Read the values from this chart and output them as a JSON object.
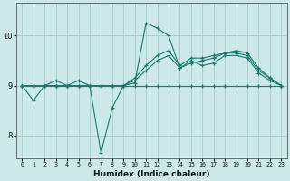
{
  "xlabel": "Humidex (Indice chaleur)",
  "bg_color": "#cce8e8",
  "grid_color": "#aacfcf",
  "line_color": "#1a7a6e",
  "xlim": [
    -0.5,
    23.5
  ],
  "ylim": [
    7.55,
    10.65
  ],
  "yticks": [
    8,
    9,
    10
  ],
  "xtick_labels": [
    "0",
    "1",
    "2",
    "3",
    "4",
    "5",
    "6",
    "7",
    "8",
    "9",
    "10",
    "11",
    "12",
    "13",
    "14",
    "15",
    "16",
    "17",
    "18",
    "19",
    "20",
    "21",
    "22",
    "23"
  ],
  "series": [
    {
      "x": [
        0,
        1,
        2,
        3,
        4,
        5,
        6,
        7,
        8,
        9,
        10,
        11,
        12,
        13,
        14,
        15,
        16,
        17,
        18,
        19,
        20,
        21,
        22,
        23
      ],
      "y": [
        9.0,
        8.7,
        9.0,
        9.1,
        9.0,
        9.1,
        9.0,
        7.65,
        8.55,
        9.0,
        9.05,
        10.25,
        10.15,
        10.0,
        9.35,
        9.5,
        9.4,
        9.45,
        9.6,
        9.6,
        9.55,
        9.25,
        9.1,
        9.0
      ]
    },
    {
      "x": [
        0,
        1,
        2,
        3,
        4,
        5,
        6,
        7,
        8,
        9,
        10,
        11,
        12,
        13,
        14,
        15,
        16,
        17,
        18,
        19,
        20,
        21,
        22,
        23
      ],
      "y": [
        9.0,
        9.0,
        9.0,
        9.0,
        9.0,
        9.0,
        9.0,
        9.0,
        9.0,
        9.0,
        9.0,
        9.0,
        9.0,
        9.0,
        9.0,
        9.0,
        9.0,
        9.0,
        9.0,
        9.0,
        9.0,
        9.0,
        9.0,
        9.0
      ]
    },
    {
      "x": [
        0,
        1,
        2,
        3,
        4,
        5,
        6,
        7,
        8,
        9,
        10,
        11,
        12,
        13,
        14,
        15,
        16,
        17,
        18,
        19,
        20,
        21,
        22,
        23
      ],
      "y": [
        9.0,
        9.0,
        9.0,
        9.0,
        9.0,
        9.0,
        9.0,
        9.0,
        9.0,
        9.0,
        9.1,
        9.3,
        9.5,
        9.6,
        9.35,
        9.45,
        9.5,
        9.55,
        9.65,
        9.65,
        9.6,
        9.3,
        9.15,
        9.0
      ]
    },
    {
      "x": [
        0,
        1,
        2,
        3,
        4,
        5,
        6,
        7,
        8,
        9,
        10,
        11,
        12,
        13,
        14,
        15,
        16,
        17,
        18,
        19,
        20,
        21,
        22,
        23
      ],
      "y": [
        9.0,
        9.0,
        9.0,
        9.0,
        9.0,
        9.0,
        9.0,
        9.0,
        9.0,
        9.0,
        9.15,
        9.4,
        9.6,
        9.7,
        9.4,
        9.55,
        9.55,
        9.6,
        9.65,
        9.7,
        9.65,
        9.35,
        9.15,
        9.0
      ]
    }
  ]
}
